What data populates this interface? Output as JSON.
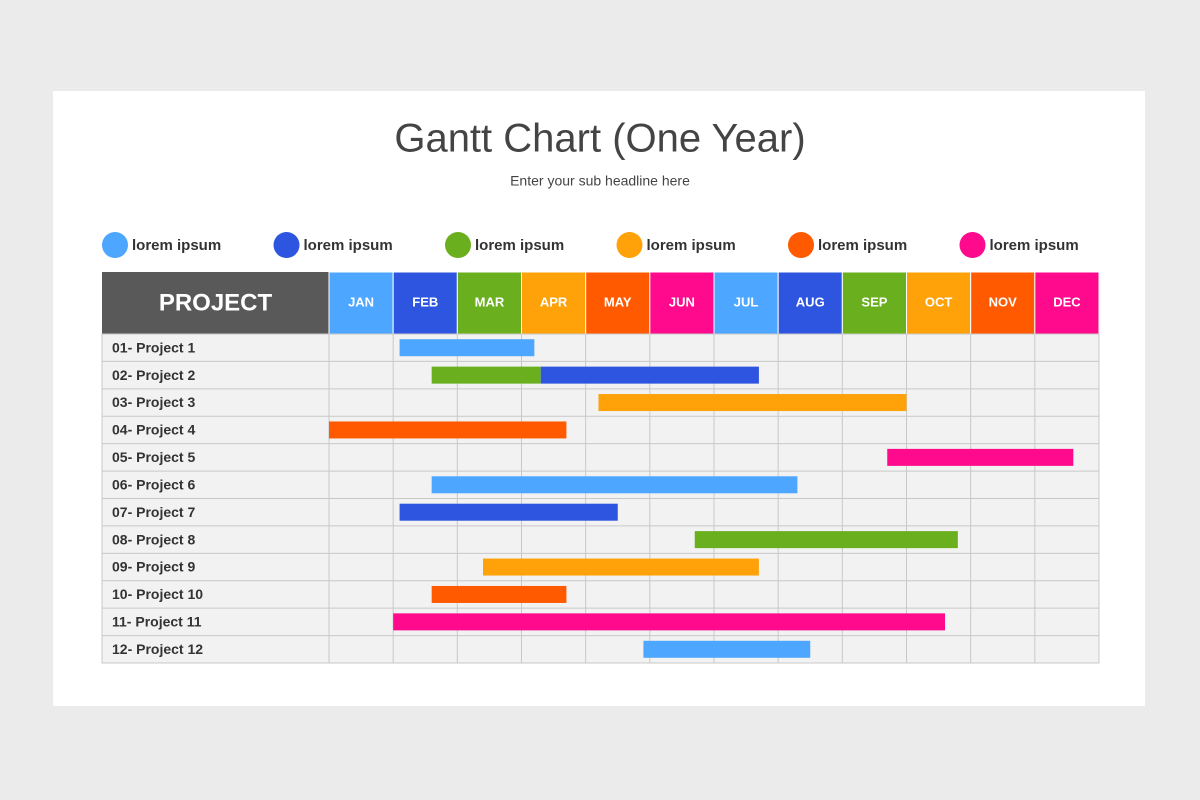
{
  "chart_data": {
    "type": "gantt",
    "title": "Gantt Chart (One Year)",
    "subtitle": "Enter your sub headline here",
    "header_label": "PROJECT",
    "categories": [
      "JAN",
      "FEB",
      "MAR",
      "APR",
      "MAY",
      "JUN",
      "JUL",
      "AUG",
      "SEP",
      "OCT",
      "NOV",
      "DEC"
    ],
    "category_colors": [
      "#4da6ff",
      "#2e55e0",
      "#6aaf1e",
      "#ffa20a",
      "#ff5a00",
      "#ff0a8c",
      "#4da6ff",
      "#2e55e0",
      "#6aaf1e",
      "#ffa20a",
      "#ff5a00",
      "#ff0a8c"
    ],
    "xlim": [
      0,
      12
    ],
    "legend": [
      {
        "name": "lorem ipsum",
        "color": "#4da6ff"
      },
      {
        "name": "lorem ipsum",
        "color": "#2e55e0"
      },
      {
        "name": "lorem ipsum",
        "color": "#6aaf1e"
      },
      {
        "name": "lorem ipsum",
        "color": "#ffa20a"
      },
      {
        "name": "lorem ipsum",
        "color": "#ff5a00"
      },
      {
        "name": "lorem ipsum",
        "color": "#ff0a8c"
      }
    ],
    "tasks": [
      {
        "name": "01- Project 1",
        "segments": [
          {
            "start": 1.1,
            "end": 3.2,
            "color": "#4da6ff"
          }
        ]
      },
      {
        "name": "02- Project 2",
        "segments": [
          {
            "start": 1.6,
            "end": 3.3,
            "color": "#6aaf1e"
          },
          {
            "start": 3.3,
            "end": 6.7,
            "color": "#2e55e0"
          }
        ]
      },
      {
        "name": "03- Project 3",
        "segments": [
          {
            "start": 4.2,
            "end": 9.0,
            "color": "#ffa20a"
          }
        ]
      },
      {
        "name": "04- Project 4",
        "segments": [
          {
            "start": 0,
            "end": 3.7,
            "color": "#ff5a00"
          }
        ]
      },
      {
        "name": "05- Project 5",
        "segments": [
          {
            "start": 8.7,
            "end": 11.6,
            "color": "#ff0a8c"
          }
        ]
      },
      {
        "name": "06- Project 6",
        "segments": [
          {
            "start": 1.6,
            "end": 7.3,
            "color": "#4da6ff"
          }
        ]
      },
      {
        "name": "07- Project 7",
        "segments": [
          {
            "start": 1.1,
            "end": 4.5,
            "color": "#2e55e0"
          }
        ]
      },
      {
        "name": "08- Project 8",
        "segments": [
          {
            "start": 5.7,
            "end": 9.8,
            "color": "#6aaf1e"
          }
        ]
      },
      {
        "name": "09- Project 9",
        "segments": [
          {
            "start": 2.4,
            "end": 6.7,
            "color": "#ffa20a"
          }
        ]
      },
      {
        "name": "10- Project 10",
        "segments": [
          {
            "start": 1.6,
            "end": 3.7,
            "color": "#ff5a00"
          }
        ]
      },
      {
        "name": "11- Project 11",
        "segments": [
          {
            "start": 1.0,
            "end": 9.6,
            "color": "#ff0a8c"
          }
        ]
      },
      {
        "name": "12- Project 12",
        "segments": [
          {
            "start": 4.9,
            "end": 7.5,
            "color": "#4da6ff"
          }
        ]
      }
    ]
  }
}
